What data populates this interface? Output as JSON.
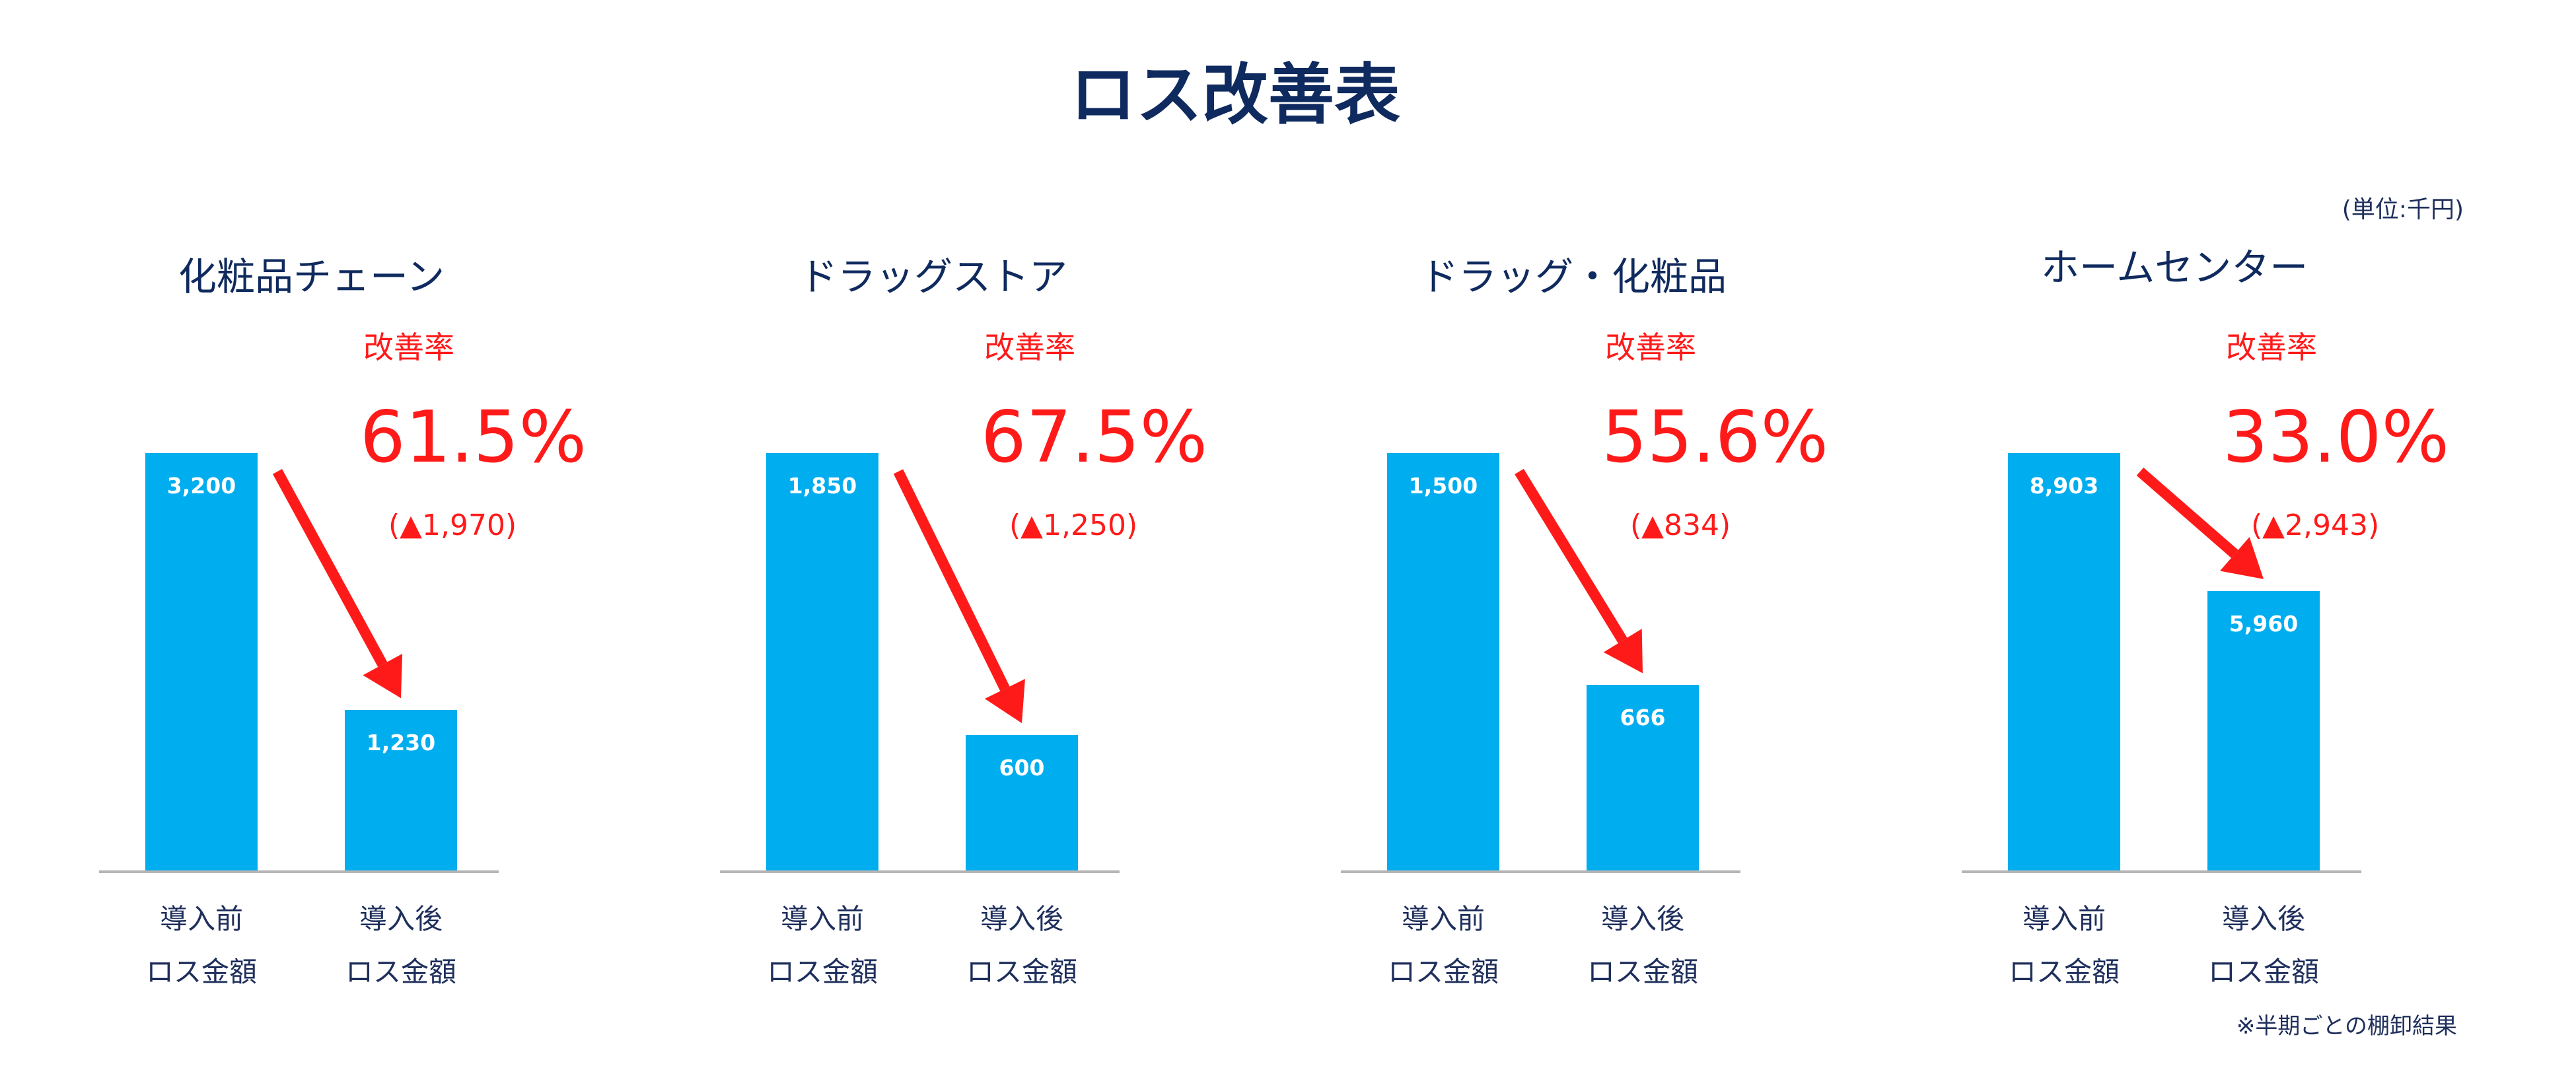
{
  "title": "ロス改善表",
  "unit_note": "(単位:千円)",
  "footnote": "※半期ごとの棚卸結果",
  "colors": {
    "bar": "#00adef",
    "accent": "#ff1a1a",
    "title": "#0f2a5e",
    "baseline": "#b5b5b5"
  },
  "chart_data": [
    {
      "type": "bar",
      "title": "化粧品チェーン",
      "categories": [
        "導入前\nロス金額",
        "導入後\nロス金額"
      ],
      "category_lines": [
        [
          "導入前",
          "ロス金額"
        ],
        [
          "導入後",
          "ロス金額"
        ]
      ],
      "values": [
        3200,
        1230
      ],
      "value_labels": [
        "3,200",
        "1,230"
      ],
      "improvement_label": "改善率",
      "improvement_rate": "61.5%",
      "improvement_diff": "(▲1,970)",
      "ylim": [
        0,
        3200
      ]
    },
    {
      "type": "bar",
      "title": "ドラッグストア",
      "categories": [
        "導入前\nロス金額",
        "導入後\nロス金額"
      ],
      "category_lines": [
        [
          "導入前",
          "ロス金額"
        ],
        [
          "導入後",
          "ロス金額"
        ]
      ],
      "values": [
        1850,
        600
      ],
      "value_labels": [
        "1,850",
        "600"
      ],
      "improvement_label": "改善率",
      "improvement_rate": "67.5%",
      "improvement_diff": "(▲1,250)",
      "ylim": [
        0,
        1850
      ]
    },
    {
      "type": "bar",
      "title": "ドラッグ・化粧品",
      "categories": [
        "導入前\nロス金額",
        "導入後\nロス金額"
      ],
      "category_lines": [
        [
          "導入前",
          "ロス金額"
        ],
        [
          "導入後",
          "ロス金額"
        ]
      ],
      "values": [
        1500,
        666
      ],
      "value_labels": [
        "1,500",
        "666"
      ],
      "improvement_label": "改善率",
      "improvement_rate": "55.6%",
      "improvement_diff": "(▲834)",
      "ylim": [
        0,
        1500
      ]
    },
    {
      "type": "bar",
      "title": "ホームセンター",
      "categories": [
        "導入前\nロス金額",
        "導入後\nロス金額"
      ],
      "category_lines": [
        [
          "導入前",
          "ロス金額"
        ],
        [
          "導入後",
          "ロス金額"
        ]
      ],
      "values": [
        8903,
        5960
      ],
      "value_labels": [
        "8,903",
        "5,960"
      ],
      "improvement_label": "改善率",
      "improvement_rate": "33.0%",
      "improvement_diff": "(▲2,943)",
      "ylim": [
        0,
        8903
      ]
    }
  ]
}
